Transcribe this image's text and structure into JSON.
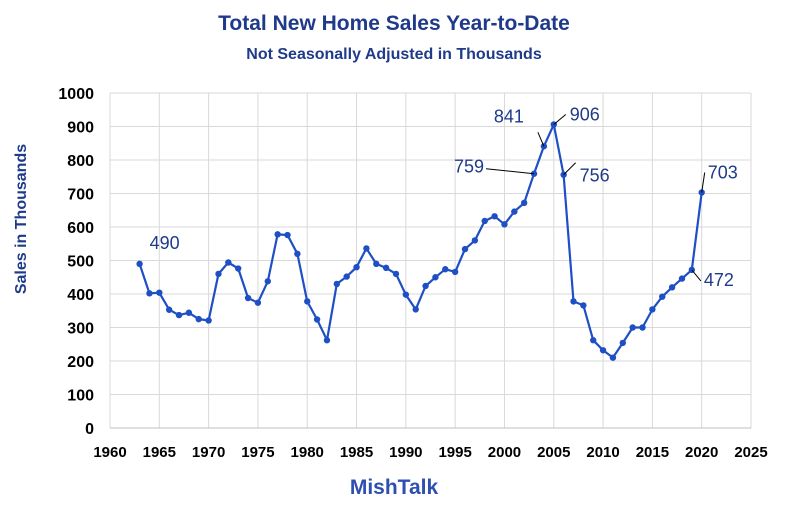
{
  "chart_data": {
    "type": "line",
    "title": "Total New Home Sales Year-to-Date",
    "subtitle": "Not Seasonally Adjusted in Thousands",
    "xlabel": "",
    "ylabel": "Sales in Thousands",
    "xlim": [
      1960,
      2025
    ],
    "ylim": [
      0,
      1000
    ],
    "x_ticks": [
      1960,
      1965,
      1970,
      1975,
      1980,
      1985,
      1990,
      1995,
      2000,
      2005,
      2010,
      2015,
      2020,
      2025
    ],
    "y_ticks": [
      0,
      100,
      200,
      300,
      400,
      500,
      600,
      700,
      800,
      900,
      1000
    ],
    "grid": true,
    "series": [
      {
        "name": "Total New Home Sales YTD",
        "color": "#1f4fc4",
        "x": [
          1963,
          1964,
          1965,
          1966,
          1967,
          1968,
          1969,
          1970,
          1971,
          1972,
          1973,
          1974,
          1975,
          1976,
          1977,
          1978,
          1979,
          1980,
          1981,
          1982,
          1983,
          1984,
          1985,
          1986,
          1987,
          1988,
          1989,
          1990,
          1991,
          1992,
          1993,
          1994,
          1995,
          1996,
          1997,
          1998,
          1999,
          2000,
          2001,
          2002,
          2003,
          2004,
          2005,
          2006,
          2007,
          2008,
          2009,
          2010,
          2011,
          2012,
          2013,
          2014,
          2015,
          2016,
          2017,
          2018,
          2019,
          2020
        ],
        "values": [
          490,
          402,
          404,
          353,
          337,
          344,
          325,
          321,
          460,
          494,
          476,
          388,
          374,
          438,
          578,
          576,
          520,
          378,
          324,
          262,
          430,
          452,
          480,
          536,
          490,
          478,
          460,
          398,
          354,
          424,
          450,
          474,
          466,
          534,
          560,
          618,
          632,
          608,
          646,
          672,
          759,
          841,
          906,
          756,
          378,
          366,
          262,
          232,
          210,
          254,
          300,
          300,
          354,
          392,
          420,
          446,
          472,
          703
        ]
      }
    ],
    "annotations": [
      {
        "label": "490",
        "x": 1963,
        "y": 490,
        "leader": false
      },
      {
        "label": "759",
        "x": 2003,
        "y": 759,
        "leader": true
      },
      {
        "label": "841",
        "x": 2004,
        "y": 841,
        "leader": true
      },
      {
        "label": "906",
        "x": 2005,
        "y": 906,
        "leader": true
      },
      {
        "label": "756",
        "x": 2006,
        "y": 756,
        "leader": true
      },
      {
        "label": "472",
        "x": 2019,
        "y": 472,
        "leader": true
      },
      {
        "label": "703",
        "x": 2020,
        "y": 703,
        "leader": true
      }
    ]
  },
  "footer": "MishTalk",
  "colors": {
    "title": "#1f3a8a",
    "line": "#1f4fc4",
    "annotation": "#1f3a8a",
    "grid": "#d9d9d9",
    "footer": "#2e4fb0"
  }
}
